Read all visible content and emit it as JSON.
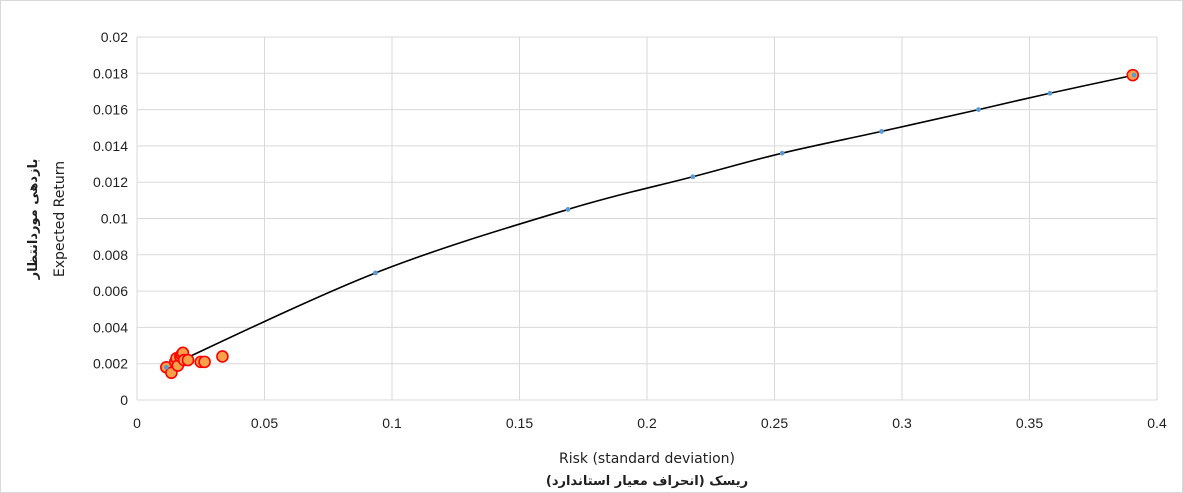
{
  "chart_data": {
    "type": "scatter",
    "xlabel": "Risk (standard deviation)",
    "xlabel_secondary": "ریسک (انحراف معیار استاندارد)",
    "ylabel": "Expected Return",
    "ylabel_secondary": "بازدهی موردانتظار",
    "xlim": [
      0,
      0.4
    ],
    "ylim": [
      0,
      0.02
    ],
    "x_ticks": [
      "0",
      "0.05",
      "0.1",
      "0.15",
      "0.2",
      "0.25",
      "0.3",
      "0.35",
      "0.4"
    ],
    "y_ticks": [
      "0",
      "0.002",
      "0.004",
      "0.006",
      "0.008",
      "0.01",
      "0.012",
      "0.014",
      "0.016",
      "0.018",
      "0.02"
    ],
    "grid": true,
    "legend": "none",
    "colors": {
      "frontier_line": "#000000",
      "frontier_points": "#5b9bd5",
      "asset_fill": "#f7a24a",
      "asset_edge": "#ff0000",
      "gridline": "#d9d9d9"
    },
    "series": [
      {
        "style": "line-with-markers",
        "x": [
          0.0115,
          0.0935,
          0.169,
          0.218,
          0.253,
          0.292,
          0.33,
          0.358,
          0.391
        ],
        "y": [
          0.0018,
          0.007,
          0.0105,
          0.0123,
          0.0136,
          0.0148,
          0.016,
          0.0169,
          0.0179
        ]
      },
      {
        "style": "markers",
        "x": [
          0.0115,
          0.0135,
          0.015,
          0.0155,
          0.016,
          0.017,
          0.0175,
          0.018,
          0.0185,
          0.02,
          0.025,
          0.0265,
          0.0335,
          0.3905
        ],
        "y": [
          0.0018,
          0.0015,
          0.0021,
          0.0023,
          0.0019,
          0.0024,
          0.0025,
          0.0026,
          0.0022,
          0.0022,
          0.0021,
          0.0021,
          0.0024,
          0.0179
        ]
      }
    ]
  }
}
